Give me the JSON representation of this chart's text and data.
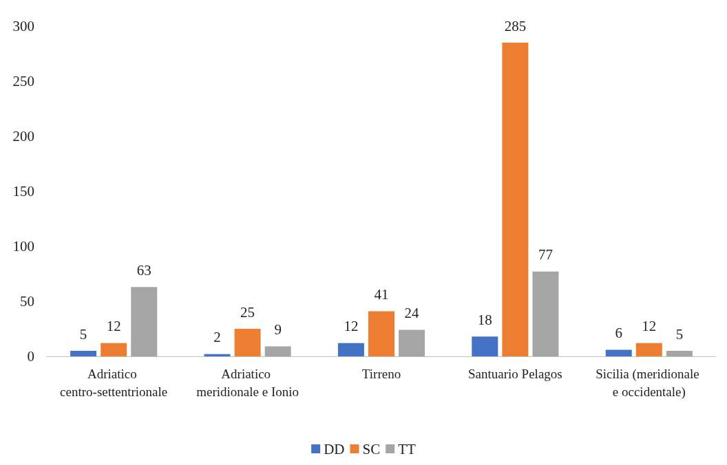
{
  "chart_data": {
    "type": "bar",
    "categories": [
      "Adriatico centro-settentrionale",
      "Adriatico meridionale e Ionio",
      "Tirreno",
      "Santuario Pelagos",
      "Sicilia (meridionale e occidentale)"
    ],
    "series": [
      {
        "name": "DD",
        "color": "#4472c4",
        "values": [
          5,
          2,
          12,
          18,
          6
        ]
      },
      {
        "name": "SC",
        "color": "#ed7d31",
        "values": [
          12,
          25,
          41,
          285,
          12
        ]
      },
      {
        "name": "TT",
        "color": "#a5a5a5",
        "values": [
          63,
          9,
          24,
          77,
          5
        ]
      }
    ],
    "ylim": [
      0,
      300
    ],
    "yticks": [
      0,
      50,
      100,
      150,
      200,
      250,
      300
    ],
    "grid": false,
    "legend": "bottom",
    "data_labels": true
  }
}
